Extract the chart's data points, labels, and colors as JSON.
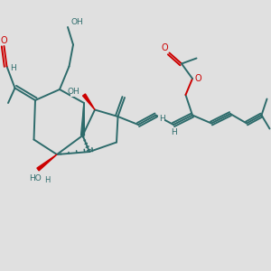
{
  "background_color": "#e0e0e0",
  "bond_color": "#2d6b6b",
  "bond_width": 1.4,
  "highlight_color": "#cc0000",
  "oxygen_color": "#cc0000",
  "label_color": "#2d6b6b",
  "figsize": [
    3.0,
    3.0
  ],
  "dpi": 100,
  "xlim": [
    0,
    10
  ],
  "ylim": [
    0,
    10
  ]
}
